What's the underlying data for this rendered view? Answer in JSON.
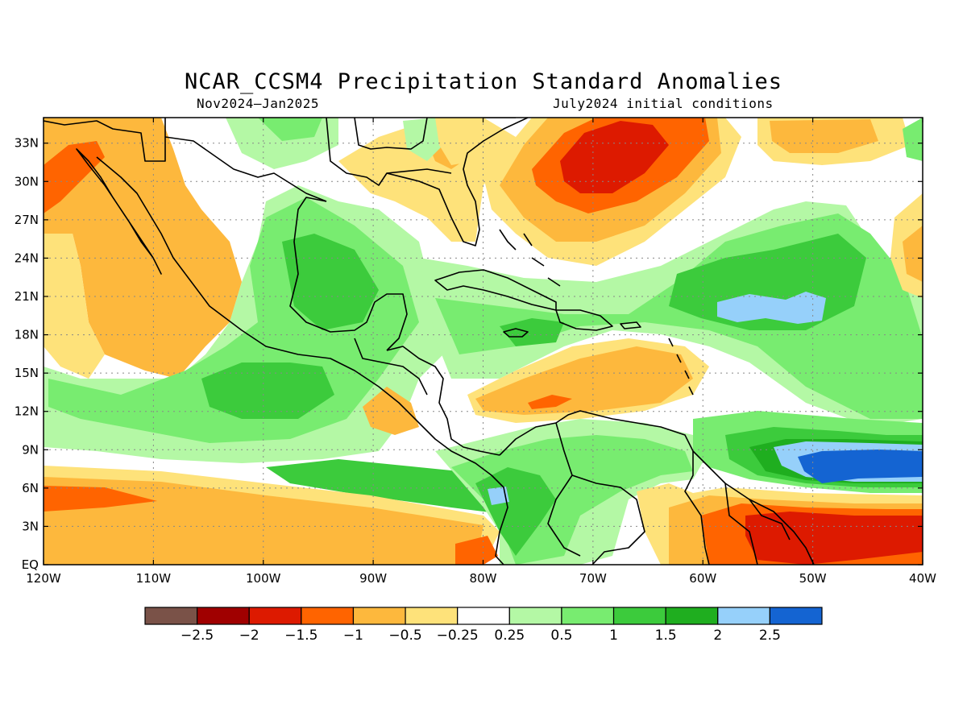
{
  "header": {
    "title": "NCAR_CCSM4 Precipitation Standard Anomalies",
    "period": "Nov2024–Jan2025",
    "init": "July2024 initial conditions"
  },
  "map": {
    "projection": "cylindrical",
    "lon_range": [
      -120,
      -40
    ],
    "lat_range": [
      0,
      35
    ],
    "lon_ticks": [
      {
        "value": -120,
        "label": "120W"
      },
      {
        "value": -110,
        "label": "110W"
      },
      {
        "value": -100,
        "label": "100W"
      },
      {
        "value": -90,
        "label": "90W"
      },
      {
        "value": -80,
        "label": "80W"
      },
      {
        "value": -70,
        "label": "70W"
      },
      {
        "value": -60,
        "label": "60W"
      },
      {
        "value": -50,
        "label": "50W"
      },
      {
        "value": -40,
        "label": "40W"
      }
    ],
    "lat_ticks": [
      {
        "value": 0,
        "label": "EQ"
      },
      {
        "value": 3,
        "label": "3N"
      },
      {
        "value": 6,
        "label": "6N"
      },
      {
        "value": 9,
        "label": "9N"
      },
      {
        "value": 12,
        "label": "12N"
      },
      {
        "value": 15,
        "label": "15N"
      },
      {
        "value": 18,
        "label": "18N"
      },
      {
        "value": 21,
        "label": "21N"
      },
      {
        "value": 24,
        "label": "24N"
      },
      {
        "value": 27,
        "label": "27N"
      },
      {
        "value": 30,
        "label": "30N"
      },
      {
        "value": 33,
        "label": "33N"
      }
    ],
    "grid": true
  },
  "legend": {
    "colors": [
      "#7a5248",
      "#a00000",
      "#dd1a00",
      "#ff6400",
      "#fdb83d",
      "#fee27a",
      "#ffffff",
      "#b4f8a5",
      "#78ec70",
      "#3ccb3c",
      "#1fae1f",
      "#96d0fa",
      "#1464d2"
    ],
    "labels": [
      "−2.5",
      "−2",
      "−1.5",
      "−1",
      "−0.5",
      "−0.25",
      "0.25",
      "0.5",
      "1",
      "1.5",
      "2",
      "2.5"
    ]
  }
}
